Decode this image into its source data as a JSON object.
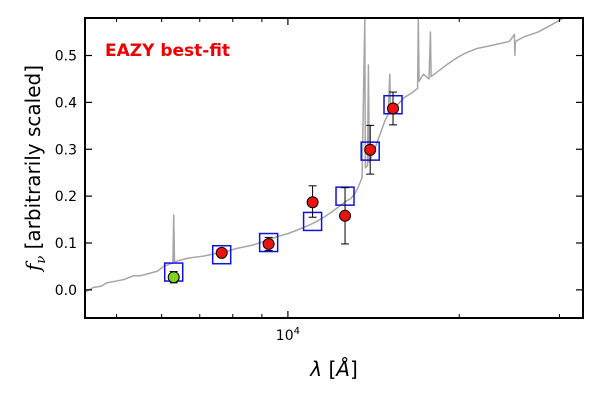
{
  "chart_data": {
    "type": "scatter",
    "title": "",
    "annotation": "EAZY best-fit",
    "xlabel_symbol": "λ",
    "xlabel_unit": "Å",
    "ylabel_symbol": "f",
    "ylabel_subscript": "ν",
    "ylabel_text": "[arbitrarily scaled]",
    "xscale": "log",
    "xlim": [
      4400,
      33000
    ],
    "ylim": [
      -0.06,
      0.58
    ],
    "x_ticks": [
      {
        "value": 10000,
        "label_base": "10",
        "label_exp": "4"
      }
    ],
    "y_ticks": [
      {
        "value": 0.0,
        "label": "0.0"
      },
      {
        "value": 0.1,
        "label": "0.1"
      },
      {
        "value": 0.2,
        "label": "0.2"
      },
      {
        "value": 0.3,
        "label": "0.3"
      },
      {
        "value": 0.4,
        "label": "0.4"
      },
      {
        "value": 0.5,
        "label": "0.5"
      }
    ],
    "colors": {
      "sed": "#a6a6a6",
      "model_box": "#1111dd",
      "observed": "#ee1111",
      "observed_green": "#7ed321",
      "annotation": "#ee0000",
      "axes": "#000000"
    },
    "series": [
      {
        "name": "SED template",
        "style": "line",
        "points": [
          [
            4400,
            -0.005
          ],
          [
            4550,
            0.005
          ],
          [
            4700,
            0.008
          ],
          [
            4800,
            0.015
          ],
          [
            4950,
            0.018
          ],
          [
            5150,
            0.022
          ],
          [
            5350,
            0.03
          ],
          [
            5500,
            0.03
          ],
          [
            5700,
            0.035
          ],
          [
            5900,
            0.04
          ],
          [
            6050,
            0.05
          ],
          [
            6200,
            0.055
          ],
          [
            6280,
            0.058
          ],
          [
            6300,
            0.16
          ],
          [
            6320,
            0.06
          ],
          [
            6500,
            0.064
          ],
          [
            6700,
            0.068
          ],
          [
            6900,
            0.07
          ],
          [
            7100,
            0.072
          ],
          [
            7300,
            0.075
          ],
          [
            7500,
            0.078
          ],
          [
            7800,
            0.082
          ],
          [
            8100,
            0.088
          ],
          [
            8400,
            0.092
          ],
          [
            8700,
            0.096
          ],
          [
            9000,
            0.102
          ],
          [
            9300,
            0.108
          ],
          [
            9600,
            0.114
          ],
          [
            10000,
            0.12
          ],
          [
            10400,
            0.128
          ],
          [
            10800,
            0.136
          ],
          [
            11200,
            0.145
          ],
          [
            11600,
            0.156
          ],
          [
            12000,
            0.168
          ],
          [
            12300,
            0.178
          ],
          [
            12600,
            0.188
          ],
          [
            12900,
            0.195
          ],
          [
            13100,
            0.205
          ],
          [
            13300,
            0.22
          ],
          [
            13500,
            0.24
          ],
          [
            13650,
            0.58
          ],
          [
            13680,
            0.26
          ],
          [
            13800,
            0.265
          ],
          [
            13850,
            0.48
          ],
          [
            13900,
            0.272
          ],
          [
            14200,
            0.3
          ],
          [
            14500,
            0.33
          ],
          [
            14800,
            0.36
          ],
          [
            15000,
            0.375
          ],
          [
            15100,
            0.46
          ],
          [
            15150,
            0.38
          ],
          [
            15500,
            0.392
          ],
          [
            16000,
            0.41
          ],
          [
            16500,
            0.42
          ],
          [
            16900,
            0.43
          ],
          [
            16950,
            0.58
          ],
          [
            17000,
            0.445
          ],
          [
            17300,
            0.46
          ],
          [
            17700,
            0.45
          ],
          [
            17800,
            0.55
          ],
          [
            17850,
            0.455
          ],
          [
            18300,
            0.465
          ],
          [
            19000,
            0.48
          ],
          [
            19800,
            0.495
          ],
          [
            20500,
            0.505
          ],
          [
            21500,
            0.515
          ],
          [
            22500,
            0.52
          ],
          [
            23500,
            0.525
          ],
          [
            24500,
            0.53
          ],
          [
            25000,
            0.545
          ],
          [
            25050,
            0.5
          ],
          [
            25100,
            0.53
          ],
          [
            26000,
            0.54
          ],
          [
            27500,
            0.55
          ],
          [
            29000,
            0.565
          ],
          [
            30500,
            0.58
          ],
          [
            31500,
            0.585
          ],
          [
            33000,
            0.59
          ]
        ]
      },
      {
        "name": "EAZY model photometry",
        "style": "square",
        "points": [
          [
            6300,
            0.038
          ],
          [
            7650,
            0.075
          ],
          [
            9250,
            0.101
          ],
          [
            11050,
            0.146
          ],
          [
            12600,
            0.2
          ],
          [
            13950,
            0.296
          ],
          [
            15300,
            0.395
          ]
        ]
      },
      {
        "name": "Observed photometry",
        "style": "circle",
        "points": [
          {
            "x": 6300,
            "y": 0.027,
            "err_low": 0.012,
            "err_high": 0.012,
            "color_key": "observed_green"
          },
          {
            "x": 7650,
            "y": 0.079,
            "err_low": 0.0,
            "err_high": 0.0,
            "color_key": "observed"
          },
          {
            "x": 9250,
            "y": 0.098,
            "err_low": 0.014,
            "err_high": 0.014,
            "color_key": "observed"
          },
          {
            "x": 11050,
            "y": 0.187,
            "err_low": 0.032,
            "err_high": 0.035,
            "color_key": "observed"
          },
          {
            "x": 12600,
            "y": 0.158,
            "err_low": 0.06,
            "err_high": 0.06,
            "color_key": "observed"
          },
          {
            "x": 13950,
            "y": 0.299,
            "err_low": 0.052,
            "err_high": 0.052,
            "color_key": "observed"
          },
          {
            "x": 15300,
            "y": 0.387,
            "err_low": 0.035,
            "err_high": 0.035,
            "color_key": "observed"
          }
        ]
      }
    ]
  }
}
